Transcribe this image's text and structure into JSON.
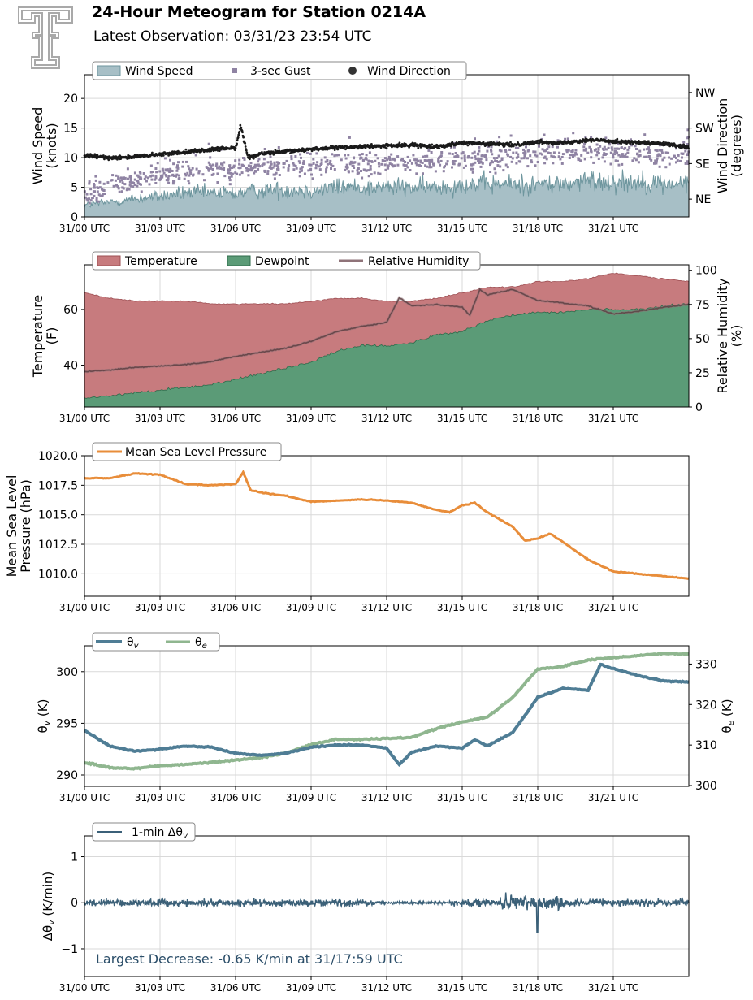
{
  "header": {
    "title": "24-Hour Meteogram for Station 0214A",
    "subtitle": "Latest Observation: 03/31/23 23:54 UTC"
  },
  "colors": {
    "wind_speed": "#a7bfc6",
    "wind_speed_line": "#6e969e",
    "gust": "#8f83a3",
    "wind_direction": "#1a1a1a",
    "temperature": "#c77b7e",
    "dewpoint": "#5b9b77",
    "relative_humidity": "#8f7379",
    "mslp": "#e88d3a",
    "theta_v": "#4f7d95",
    "theta_e": "#8fb68f",
    "dtheta_v": "#3b6078",
    "annotation": "#2b4e69",
    "logo": "#a9a9a9"
  },
  "x_ticks": [
    "31/00 UTC",
    "31/03 UTC",
    "31/06 UTC",
    "31/09 UTC",
    "31/12 UTC",
    "31/15 UTC",
    "31/18 UTC",
    "31/21 UTC"
  ],
  "chart_data": [
    {
      "type": "area",
      "id": "wind",
      "x_range_hours": [
        0,
        24
      ],
      "ylabel": "Wind Speed\n(knots)",
      "ylim": [
        0,
        24
      ],
      "yticks": [
        0,
        5,
        10,
        15,
        20
      ],
      "y2label": "Wind Direction\n(degrees)",
      "y2lim": [
        0,
        360
      ],
      "y2ticks": [
        {
          "value": 45,
          "label": "NE"
        },
        {
          "value": 135,
          "label": "SE"
        },
        {
          "value": 225,
          "label": "SW"
        },
        {
          "value": 315,
          "label": "NW"
        }
      ],
      "legend": {
        "placement": "top-left",
        "entries": [
          "Wind Speed",
          "3-sec Gust",
          "Wind Direction"
        ]
      },
      "grid": true,
      "series": [
        {
          "name": "Wind Speed",
          "kind": "area",
          "hours": [
            0,
            1,
            2,
            3,
            4,
            5,
            6,
            7,
            8,
            9,
            10,
            11,
            12,
            13,
            14,
            15,
            16,
            17,
            18,
            19,
            20,
            21,
            22,
            23,
            24
          ],
          "values": [
            2.0,
            2.5,
            3.0,
            3.5,
            4.0,
            4.0,
            4.0,
            4.5,
            4.5,
            4.5,
            5.0,
            5.0,
            5.0,
            5.0,
            5.0,
            5.5,
            5.5,
            5.5,
            5.5,
            5.5,
            6.0,
            6.0,
            6.0,
            5.5,
            5.5
          ]
        },
        {
          "name": "3-sec Gust",
          "kind": "scatter",
          "hours": [
            0,
            1,
            2,
            3,
            4,
            5,
            6,
            7,
            8,
            9,
            10,
            11,
            12,
            13,
            14,
            15,
            16,
            17,
            18,
            19,
            20,
            21,
            22,
            23,
            24
          ],
          "values": [
            3.5,
            5.0,
            6.0,
            7.0,
            7.5,
            8.0,
            8.0,
            8.5,
            8.5,
            8.5,
            9.0,
            9.0,
            9.0,
            9.0,
            9.5,
            9.5,
            10.0,
            10.0,
            10.5,
            10.5,
            11.0,
            11.0,
            11.0,
            10.5,
            10.5
          ]
        },
        {
          "name": "Wind Direction",
          "kind": "scatter",
          "hours": [
            0,
            1,
            2,
            3,
            4,
            5,
            6,
            6.2,
            6.5,
            7,
            8,
            9,
            10,
            11,
            12,
            13,
            14,
            15,
            16,
            17,
            18,
            19,
            20,
            21,
            22,
            23,
            24
          ],
          "values_degrees": [
            155,
            150,
            152,
            158,
            165,
            170,
            175,
            230,
            150,
            160,
            165,
            172,
            175,
            178,
            180,
            182,
            178,
            188,
            185,
            182,
            190,
            188,
            195,
            192,
            188,
            185,
            175
          ]
        }
      ]
    },
    {
      "type": "area",
      "id": "temperature",
      "x_range_hours": [
        0,
        24
      ],
      "ylabel": "Temperature\n(F)",
      "ylim": [
        25,
        76
      ],
      "yticks": [
        40,
        60
      ],
      "y2label": "Relative Humidity\n(%)",
      "y2lim": [
        0,
        104
      ],
      "y2ticks": [
        0,
        25,
        50,
        75,
        100
      ],
      "legend": {
        "placement": "top-left",
        "entries": [
          "Temperature",
          "Dewpoint",
          "Relative Humidity"
        ]
      },
      "grid": true,
      "series": [
        {
          "name": "Temperature",
          "hours": [
            0,
            1,
            2,
            3,
            4,
            5,
            6,
            7,
            8,
            9,
            10,
            11,
            12,
            13,
            14,
            15,
            16,
            17,
            18,
            19,
            20,
            21,
            22,
            23,
            24
          ],
          "values": [
            66,
            64,
            63,
            63,
            63,
            62,
            62,
            62,
            62,
            63,
            64,
            64,
            63,
            63,
            64,
            66,
            68,
            68,
            70,
            70,
            71,
            73,
            72,
            71,
            70
          ]
        },
        {
          "name": "Dewpoint",
          "hours": [
            0,
            1,
            2,
            3,
            4,
            5,
            6,
            7,
            8,
            9,
            10,
            11,
            12,
            13,
            14,
            15,
            16,
            17,
            18,
            19,
            20,
            21,
            22,
            23,
            24
          ],
          "values": [
            28,
            29,
            30,
            31,
            32,
            33,
            35,
            37,
            39,
            41,
            45,
            47,
            47,
            48,
            51,
            52,
            56,
            58,
            59,
            59,
            60,
            60,
            60,
            61,
            62
          ]
        },
        {
          "name": "Relative Humidity",
          "hours": [
            0,
            1,
            2,
            3,
            4,
            5,
            6,
            7,
            8,
            9,
            10,
            11,
            12,
            12.5,
            13,
            14,
            15,
            15.3,
            15.7,
            16,
            17,
            18,
            19,
            20,
            21,
            22,
            23,
            24
          ],
          "values": [
            26,
            27,
            29,
            30,
            31,
            33,
            37,
            40,
            43,
            48,
            55,
            59,
            62,
            80,
            74,
            75,
            73,
            67,
            86,
            82,
            86,
            78,
            76,
            74,
            68,
            70,
            73,
            75
          ]
        }
      ]
    },
    {
      "type": "line",
      "id": "pressure",
      "x_range_hours": [
        0,
        24
      ],
      "ylabel": "Mean Sea Level\nPressure (hPa)",
      "ylim": [
        1008.1,
        1020.0
      ],
      "yticks": [
        1010.0,
        1012.5,
        1015.0,
        1017.5,
        1020.0
      ],
      "legend": {
        "placement": "top-left",
        "entries": [
          "Mean Sea Level Pressure"
        ]
      },
      "grid": true,
      "series": [
        {
          "name": "Mean Sea Level Pressure",
          "hours": [
            0,
            1,
            2,
            3,
            4,
            5,
            6,
            6.3,
            6.6,
            7,
            8,
            9,
            10,
            11,
            12,
            13,
            14,
            14.5,
            15,
            15.5,
            16,
            17,
            17.5,
            18,
            18.5,
            19,
            20,
            21,
            22,
            23,
            24
          ],
          "values": [
            1018.1,
            1018.1,
            1018.5,
            1018.4,
            1017.6,
            1017.5,
            1017.6,
            1018.6,
            1017.1,
            1016.9,
            1016.6,
            1016.1,
            1016.2,
            1016.3,
            1016.2,
            1016.0,
            1015.4,
            1015.2,
            1015.8,
            1016.0,
            1015.2,
            1014.0,
            1012.8,
            1013.0,
            1013.4,
            1012.7,
            1011.2,
            1010.2,
            1010.0,
            1009.8,
            1009.6
          ]
        }
      ]
    },
    {
      "type": "line",
      "id": "theta",
      "x_range_hours": [
        0,
        24
      ],
      "ylabel": "θv (K)",
      "ylim": [
        288.9,
        302.5
      ],
      "yticks": [
        290,
        295,
        300
      ],
      "y2label": "θe (K)",
      "y2lim": [
        299.8,
        334.5
      ],
      "y2ticks": [
        300,
        310,
        320,
        330
      ],
      "legend": {
        "placement": "top-left",
        "entries": [
          "θv",
          "θe"
        ]
      },
      "grid": true,
      "series": [
        {
          "name": "θv",
          "axis": "left",
          "hours": [
            0,
            1,
            2,
            3,
            4,
            5,
            6,
            7,
            8,
            9,
            10,
            11,
            12,
            12.5,
            13,
            14,
            15,
            15.5,
            16,
            17,
            18,
            19,
            20,
            20.5,
            21,
            22,
            23,
            24
          ],
          "values": [
            294.3,
            292.8,
            292.3,
            292.5,
            292.8,
            292.7,
            292.1,
            291.9,
            292.1,
            292.7,
            292.9,
            292.9,
            292.6,
            291.0,
            292.2,
            292.8,
            292.6,
            293.4,
            292.8,
            294.1,
            297.5,
            298.4,
            298.2,
            300.7,
            300.3,
            299.6,
            299.1,
            299.0
          ]
        },
        {
          "name": "θe",
          "axis": "right",
          "hours": [
            0,
            1,
            2,
            3,
            4,
            5,
            6,
            7,
            8,
            9,
            10,
            11,
            12,
            13,
            14,
            15,
            16,
            17,
            18,
            19,
            20,
            21,
            22,
            23,
            24
          ],
          "values": [
            305.7,
            304.4,
            304.2,
            304.9,
            305.2,
            305.7,
            306.3,
            306.9,
            308.0,
            310.1,
            311.4,
            311.4,
            311.6,
            311.9,
            314.1,
            315.7,
            316.9,
            321.7,
            328.8,
            329.4,
            331.0,
            331.6,
            332.1,
            332.6,
            332.5
          ]
        }
      ]
    },
    {
      "type": "line",
      "id": "dtheta",
      "x_range_hours": [
        0,
        24
      ],
      "ylabel": "Δθv (K/min)",
      "ylim": [
        -1.6,
        1.45
      ],
      "yticks": [
        -1,
        0,
        1
      ],
      "legend": {
        "placement": "top-left",
        "entries": [
          "1-min Δθv"
        ]
      },
      "grid": true,
      "annotation": "Largest Decrease: -0.65 K/min at 31/17:59 UTC",
      "series": [
        {
          "name": "1-min Δθv",
          "summary": {
            "min": -0.65,
            "min_time_hours": 17.98
          }
        }
      ]
    }
  ]
}
